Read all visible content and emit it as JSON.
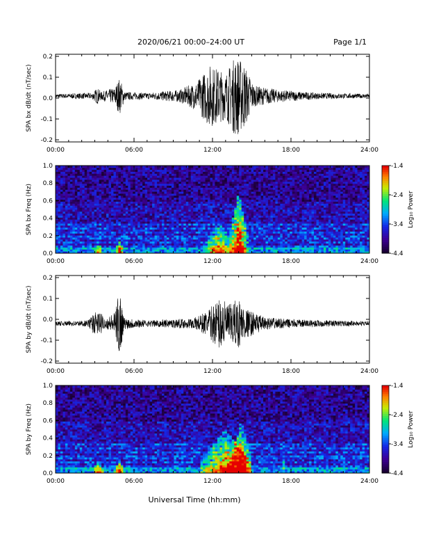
{
  "header": {
    "title": "2020/06/21  00:00–24:00 UT",
    "page": "Page 1/1"
  },
  "footer": {
    "xlabel": "Universal Time (hh:mm)"
  },
  "chart_data": [
    {
      "type": "line",
      "ylabel": "SPA bx dB/dt (nT/sec)",
      "ylim": [
        -0.21,
        0.21
      ],
      "xlim": [
        0,
        24
      ],
      "xticks": [
        "00:00",
        "06:00",
        "12:00",
        "18:00",
        "24:00"
      ],
      "yticks": [
        "-0.2",
        "-0.1",
        "0.0",
        "0.1",
        "0.2"
      ],
      "baseline": 0.01,
      "envelope": [
        {
          "t": 0,
          "a": 0.01
        },
        {
          "t": 2.8,
          "a": 0.015
        },
        {
          "t": 3.2,
          "a": 0.04
        },
        {
          "t": 3.5,
          "a": 0.02
        },
        {
          "t": 4.5,
          "a": 0.04
        },
        {
          "t": 4.9,
          "a": 0.09
        },
        {
          "t": 5.3,
          "a": 0.02
        },
        {
          "t": 7,
          "a": 0.015
        },
        {
          "t": 9.5,
          "a": 0.03
        },
        {
          "t": 10.8,
          "a": 0.07
        },
        {
          "t": 11.8,
          "a": 0.15
        },
        {
          "t": 12.5,
          "a": 0.13
        },
        {
          "t": 13,
          "a": 0.11
        },
        {
          "t": 13.8,
          "a": 0.2
        },
        {
          "t": 14.4,
          "a": 0.16
        },
        {
          "t": 15.2,
          "a": 0.05
        },
        {
          "t": 17,
          "a": 0.03
        },
        {
          "t": 20,
          "a": 0.015
        },
        {
          "t": 24,
          "a": 0.01
        }
      ]
    },
    {
      "type": "heatmap",
      "ylabel": "SPA bx Freq (Hz)",
      "ylim": [
        0,
        1.0
      ],
      "xlim": [
        0,
        24
      ],
      "xticks": [
        "00:00",
        "06:00",
        "12:00",
        "18:00",
        "24:00"
      ],
      "yticks": [
        "0.0",
        "0.2",
        "0.4",
        "0.6",
        "0.8",
        "1.0"
      ],
      "colorbar": {
        "label": "Log₁₀ Power",
        "min": -4.4,
        "max": -1.4,
        "ticks": [
          "-1.4",
          "-2.4",
          "-3.4",
          "-4.4"
        ]
      },
      "bursts": [
        {
          "t": 3.3,
          "w": 0.25,
          "h": 0.12,
          "s": 0.6
        },
        {
          "t": 4.9,
          "w": 0.3,
          "h": 0.15,
          "s": 0.8
        },
        {
          "t": 12.5,
          "w": 1.0,
          "h": 0.35,
          "s": 0.7
        },
        {
          "t": 14.0,
          "w": 0.6,
          "h": 0.7,
          "s": 1.0
        }
      ]
    },
    {
      "type": "line",
      "ylabel": "SPA by dB/dt (nT/sec)",
      "ylim": [
        -0.21,
        0.21
      ],
      "xlim": [
        0,
        24
      ],
      "xticks": [
        "00:00",
        "06:00",
        "12:00",
        "18:00",
        "24:00"
      ],
      "yticks": [
        "-0.2",
        "-0.1",
        "0.0",
        "0.1",
        "0.2"
      ],
      "baseline": -0.02,
      "envelope": [
        {
          "t": 0,
          "a": 0.01
        },
        {
          "t": 2.5,
          "a": 0.015
        },
        {
          "t": 2.9,
          "a": 0.05
        },
        {
          "t": 3.4,
          "a": 0.06
        },
        {
          "t": 3.8,
          "a": 0.02
        },
        {
          "t": 4.6,
          "a": 0.06
        },
        {
          "t": 4.9,
          "a": 0.19
        },
        {
          "t": 5.2,
          "a": 0.03
        },
        {
          "t": 7,
          "a": 0.015
        },
        {
          "t": 10.5,
          "a": 0.025
        },
        {
          "t": 11.6,
          "a": 0.06
        },
        {
          "t": 12.6,
          "a": 0.13
        },
        {
          "t": 13.2,
          "a": 0.09
        },
        {
          "t": 14.0,
          "a": 0.12
        },
        {
          "t": 14.6,
          "a": 0.07
        },
        {
          "t": 16,
          "a": 0.03
        },
        {
          "t": 18,
          "a": 0.02
        },
        {
          "t": 24,
          "a": 0.01
        }
      ]
    },
    {
      "type": "heatmap",
      "ylabel": "SPA by Freq (Hz)",
      "ylim": [
        0,
        1.0
      ],
      "xlim": [
        0,
        24
      ],
      "xticks": [
        "00:00",
        "06:00",
        "12:00",
        "18:00",
        "24:00"
      ],
      "yticks": [
        "0.0",
        "0.2",
        "0.4",
        "0.6",
        "0.8",
        "1.0"
      ],
      "colorbar": {
        "label": "Log₁₀ Power",
        "min": -4.4,
        "max": -1.4,
        "ticks": [
          "-1.4",
          "-2.4",
          "-3.4",
          "-4.4"
        ]
      },
      "bursts": [
        {
          "t": 3.3,
          "w": 0.35,
          "h": 0.15,
          "s": 0.6
        },
        {
          "t": 4.9,
          "w": 0.35,
          "h": 0.15,
          "s": 0.75
        },
        {
          "t": 13.0,
          "w": 1.6,
          "h": 0.5,
          "s": 0.8
        },
        {
          "t": 14.2,
          "w": 0.7,
          "h": 0.6,
          "s": 0.9
        },
        {
          "t": 17.5,
          "w": 0.05,
          "h": 1.0,
          "s": 0.6
        }
      ]
    }
  ]
}
